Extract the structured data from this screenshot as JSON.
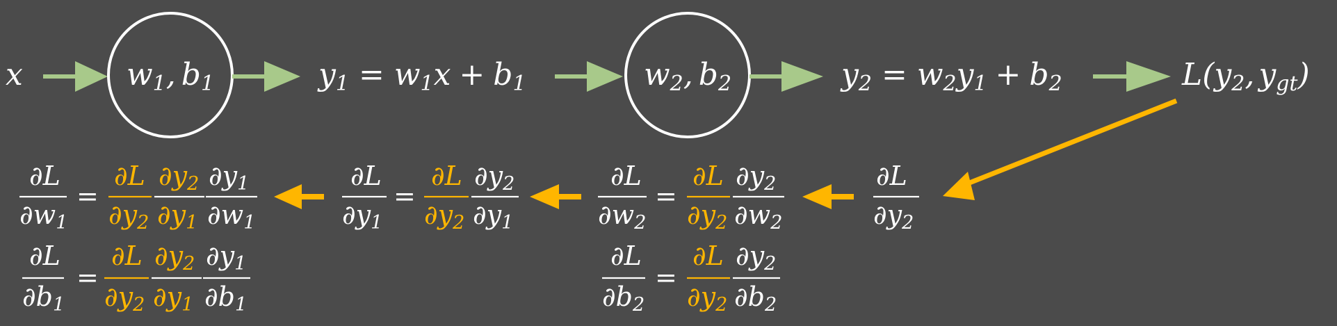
{
  "forward": {
    "input": {
      "var": "x"
    },
    "node1": {
      "w": "w",
      "w_sub": "1",
      "sep": ",",
      "b": "b",
      "b_sub": "1"
    },
    "eq1": {
      "lhs": "y",
      "lhs_sub": "1",
      "eq": "=",
      "w": "w",
      "w_sub": "1",
      "x": "x",
      "plus": "+",
      "b": "b",
      "b_sub": "1"
    },
    "node2": {
      "w": "w",
      "w_sub": "2",
      "sep": ",",
      "b": "b",
      "b_sub": "2"
    },
    "eq2": {
      "lhs": "y",
      "lhs_sub": "2",
      "eq": "=",
      "w": "w",
      "w_sub": "2",
      "y": "y",
      "y_sub": "1",
      "plus": "+",
      "b": "b",
      "b_sub": "2"
    },
    "loss": {
      "L": "L",
      "open": "(",
      "y": "y",
      "y_sub": "2",
      "sep": ",",
      "ygt": "y",
      "ygt_sub": "gt",
      "close": ")"
    }
  },
  "backward": {
    "start": {
      "num": "∂L",
      "den": "∂y",
      "den_sub": "2"
    },
    "dw2": {
      "lhs_num": "∂L",
      "lhs_den": "∂w",
      "lhs_sub": "2",
      "eq": "=",
      "f1_num": "∂L",
      "f1_den": "∂y",
      "f1_den_sub": "2",
      "f2_num": "∂y",
      "f2_num_sub": "2",
      "f2_den": "∂w",
      "f2_den_sub": "2"
    },
    "db2": {
      "lhs_num": "∂L",
      "lhs_den": "∂b",
      "lhs_sub": "2",
      "eq": "=",
      "f1_num": "∂L",
      "f1_den": "∂y",
      "f1_den_sub": "2",
      "f2_num": "∂y",
      "f2_num_sub": "2",
      "f2_den": "∂b",
      "f2_den_sub": "2"
    },
    "dy1": {
      "lhs_num": "∂L",
      "lhs_den": "∂y",
      "lhs_sub": "1",
      "eq": "=",
      "f1_num": "∂L",
      "f1_den": "∂y",
      "f1_den_sub": "2",
      "f2_num": "∂y",
      "f2_num_sub": "2",
      "f2_den": "∂y",
      "f2_den_sub": "1"
    },
    "dw1": {
      "lhs_num": "∂L",
      "lhs_den": "∂w",
      "lhs_sub": "1",
      "eq": "=",
      "f1_num": "∂L",
      "f1_den": "∂y",
      "f1_den_sub": "2",
      "f2_num": "∂y",
      "f2_num_sub": "2",
      "f2_den": "∂y",
      "f2_den_sub": "1",
      "f3_num": "∂y",
      "f3_num_sub": "1",
      "f3_den": "∂w",
      "f3_den_sub": "1"
    },
    "db1": {
      "lhs_num": "∂L",
      "lhs_den": "∂b",
      "lhs_sub": "1",
      "eq": "=",
      "f1_num": "∂L",
      "f1_den": "∂y",
      "f1_den_sub": "2",
      "f2_num": "∂y",
      "f2_num_sub": "2",
      "f2_den": "∂y",
      "f2_den_sub": "1",
      "f3_num": "∂y",
      "f3_num_sub": "1",
      "f3_den": "∂b",
      "f3_den_sub": "1"
    }
  },
  "colors": {
    "background": "#4b4b4b",
    "text": "#ffffff",
    "forward_arrow": "#a8c98a",
    "backward_arrow": "#ffb600",
    "highlight": "#ffb600"
  }
}
